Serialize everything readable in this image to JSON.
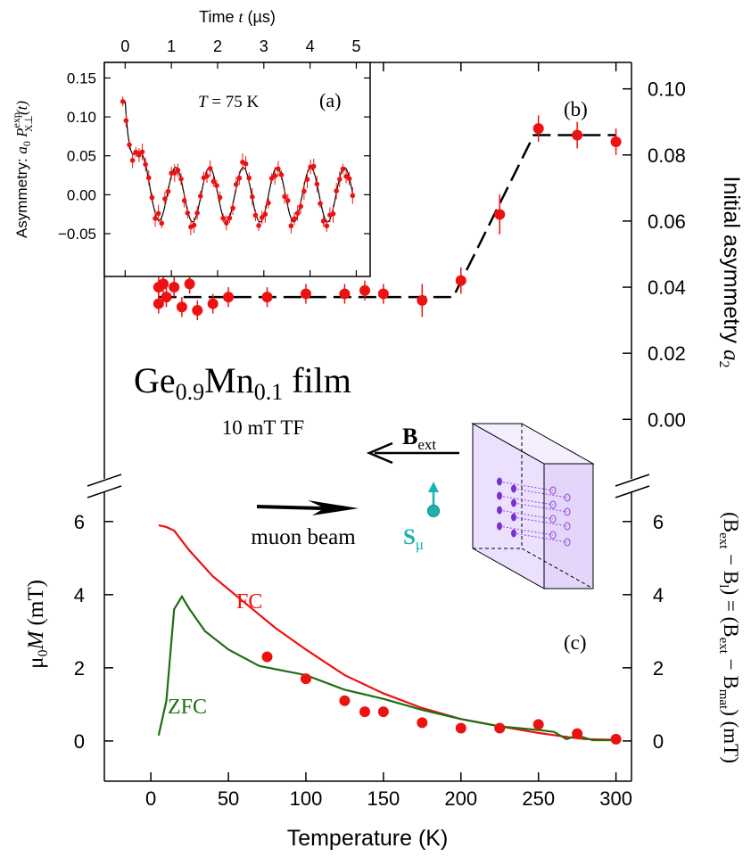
{
  "colors": {
    "data": "#ee1111",
    "fc": "#ee1111",
    "zfc": "#1e6e12",
    "spin": "#19b3b3",
    "box": "#ece0ff",
    "cyl": "#8e44d8"
  },
  "chart_data": [
    {
      "id": "main",
      "type": "scatter",
      "xlabel": "Temperature (K)",
      "xlim": [
        -30,
        310
      ],
      "xticks": [
        0,
        50,
        100,
        150,
        200,
        250,
        300
      ],
      "panel_b": {
        "label": "(b)",
        "ylabel_prefix": "Initial asymmetry ",
        "ylabel_var": "a",
        "ylabel_sub": "2",
        "ylim": [
          -0.018,
          0.108
        ],
        "yticks": [
          "0.00",
          "0.02",
          "0.04",
          "0.06",
          "0.08",
          "0.10"
        ],
        "points": [
          {
            "x": 5,
            "y": 0.035,
            "err": 0.003
          },
          {
            "x": 5,
            "y": 0.04,
            "err": 0.003
          },
          {
            "x": 8,
            "y": 0.041,
            "err": 0.003
          },
          {
            "x": 10,
            "y": 0.037,
            "err": 0.003
          },
          {
            "x": 15,
            "y": 0.04,
            "err": 0.003
          },
          {
            "x": 20,
            "y": 0.034,
            "err": 0.003
          },
          {
            "x": 25,
            "y": 0.041,
            "err": 0.003
          },
          {
            "x": 30,
            "y": 0.033,
            "err": 0.003
          },
          {
            "x": 40,
            "y": 0.035,
            "err": 0.003
          },
          {
            "x": 50,
            "y": 0.037,
            "err": 0.003
          },
          {
            "x": 75,
            "y": 0.037,
            "err": 0.003
          },
          {
            "x": 100,
            "y": 0.038,
            "err": 0.003
          },
          {
            "x": 125,
            "y": 0.038,
            "err": 0.003
          },
          {
            "x": 138,
            "y": 0.039,
            "err": 0.003
          },
          {
            "x": 150,
            "y": 0.038,
            "err": 0.003
          },
          {
            "x": 175,
            "y": 0.036,
            "err": 0.005
          },
          {
            "x": 200,
            "y": 0.042,
            "err": 0.004
          },
          {
            "x": 225,
            "y": 0.062,
            "err": 0.006
          },
          {
            "x": 250,
            "y": 0.088,
            "err": 0.004
          },
          {
            "x": 275,
            "y": 0.086,
            "err": 0.004
          },
          {
            "x": 300,
            "y": 0.084,
            "err": 0.004
          }
        ],
        "fit_line": [
          [
            5,
            0.037
          ],
          [
            195,
            0.037
          ],
          [
            247,
            0.086
          ],
          [
            300,
            0.086
          ]
        ]
      },
      "panel_c": {
        "label": "(c)",
        "ylabel_right_parts": [
          "(B",
          "ext",
          " − B",
          "l",
          ") = (B",
          "ext",
          " − B",
          "mat",
          ") (mT)"
        ],
        "ylim": [
          -1.1,
          6.8
        ],
        "yticks": [
          0,
          2,
          4,
          6
        ],
        "points": [
          {
            "x": 75,
            "y": 2.3
          },
          {
            "x": 100,
            "y": 1.7
          },
          {
            "x": 125,
            "y": 1.1
          },
          {
            "x": 138,
            "y": 0.8
          },
          {
            "x": 150,
            "y": 0.8
          },
          {
            "x": 175,
            "y": 0.5
          },
          {
            "x": 200,
            "y": 0.35
          },
          {
            "x": 225,
            "y": 0.35
          },
          {
            "x": 250,
            "y": 0.45
          },
          {
            "x": 275,
            "y": 0.2
          },
          {
            "x": 300,
            "y": 0.05
          }
        ],
        "series": [
          {
            "name": "FC",
            "points": [
              [
                5,
                5.9
              ],
              [
                10,
                5.85
              ],
              [
                15,
                5.75
              ],
              [
                25,
                5.2
              ],
              [
                40,
                4.5
              ],
              [
                60,
                3.8
              ],
              [
                80,
                3.1
              ],
              [
                100,
                2.5
              ],
              [
                125,
                1.8
              ],
              [
                150,
                1.3
              ],
              [
                175,
                0.9
              ],
              [
                200,
                0.6
              ],
              [
                225,
                0.4
              ],
              [
                250,
                0.22
              ],
              [
                270,
                0.1
              ],
              [
                280,
                0.05
              ],
              [
                300,
                0.03
              ]
            ]
          },
          {
            "name": "ZFC",
            "points": [
              [
                5,
                0.15
              ],
              [
                10,
                1.1
              ],
              [
                15,
                3.6
              ],
              [
                20,
                3.95
              ],
              [
                25,
                3.6
              ],
              [
                35,
                3.0
              ],
              [
                50,
                2.5
              ],
              [
                70,
                2.05
              ],
              [
                100,
                1.8
              ],
              [
                125,
                1.4
              ],
              [
                150,
                1.15
              ],
              [
                175,
                0.85
              ],
              [
                200,
                0.6
              ],
              [
                225,
                0.4
              ],
              [
                250,
                0.3
              ],
              [
                260,
                0.25
              ],
              [
                268,
                0.05
              ],
              [
                275,
                0.15
              ],
              [
                285,
                0.02
              ],
              [
                300,
                0.02
              ]
            ]
          }
        ]
      }
    },
    {
      "id": "inset",
      "type": "line",
      "label": "(a)",
      "temp_prefix": "T",
      "temp_suffix": " = 75 K",
      "xlabel_prefix": "Time ",
      "xlabel_var": "t",
      "xlabel_suffix": " (µs)",
      "ylabel_prefix": "Asymmetry: ",
      "ylabel_a": "a",
      "ylabel_a_sub": "0",
      "ylabel_p": " P",
      "ylabel_p_sup": "exp",
      "ylabel_p_sub": "X⊥",
      "ylabel_t": "(t)",
      "xlim": [
        -0.45,
        5.3
      ],
      "ylim": [
        -0.105,
        0.17
      ],
      "xticks": [
        0,
        1,
        2,
        3,
        4,
        5
      ],
      "yticks": [
        "0.15",
        "0.10",
        "0.05",
        "0.00",
        "−0.05"
      ],
      "model": {
        "amp_fast": 0.12,
        "rate_fast": 6.0,
        "amp_osc": 0.035,
        "freq_mhz": 1.37,
        "phase_rad": 3.1415
      }
    }
  ],
  "annotations": {
    "sample": {
      "ge": "Ge",
      "ge_sub": "0.9",
      "mn": "Mn",
      "mn_sub": "0.1",
      "film": " film"
    },
    "field": "10 mT TF",
    "bext_main": "B",
    "bext_sub": "ext",
    "beam": "muon beam",
    "spin_main": "S",
    "spin_sub": "μ",
    "left_ylabel_main": "μ",
    "left_ylabel_sub": "0",
    "left_ylabel_var": "M",
    "left_ylabel_unit": "  (mT)"
  },
  "legend": {
    "fc": "FC",
    "zfc": "ZFC"
  }
}
